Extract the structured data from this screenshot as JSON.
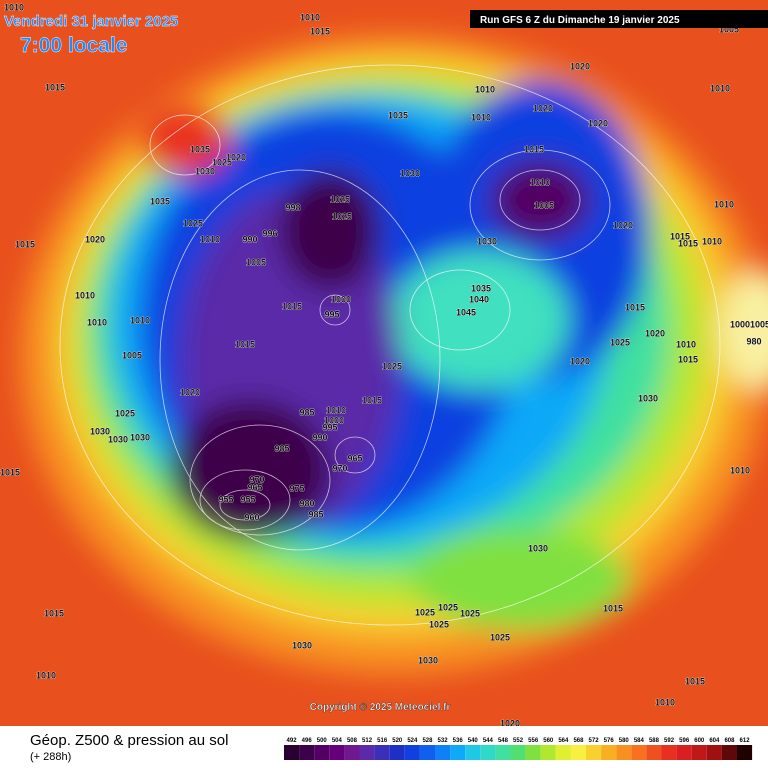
{
  "header": {
    "date": "Vendredi 31 janvier 2025",
    "time": "7:00 locale",
    "run": "Run GFS 6 Z du Dimanche 19 janvier 2025"
  },
  "map": {
    "isobar_labels": [
      1010,
      1010,
      1015,
      1015,
      1035,
      1025,
      1020,
      1030,
      1035,
      1025,
      1010,
      1020,
      1015,
      990,
      996,
      998,
      1025,
      1025,
      1005,
      1035,
      1030,
      1010,
      1010,
      1020,
      1020,
      1020,
      1005,
      1015,
      1010,
      1005,
      1030,
      1020,
      1015,
      1015,
      1010,
      1010,
      1010,
      1035,
      1040,
      1045,
      1000,
      995,
      1015,
      1015,
      1010,
      1010,
      1010,
      1005,
      1025,
      1020,
      1025,
      1015,
      1020,
      1010,
      1015,
      1030,
      1020,
      1015,
      985,
      1010,
      1000,
      995,
      990,
      985,
      965,
      970,
      970,
      965,
      975,
      980,
      985,
      955,
      955,
      960,
      1025,
      1030,
      1030,
      1030,
      1015,
      1010,
      1030,
      1015,
      1025,
      1025,
      1025,
      1025,
      1025,
      1015,
      1030,
      1030,
      1010,
      1015,
      1010,
      1020,
      1000,
      1005,
      980
    ],
    "copyright": "Copyright © 2025 Meteociel.fr"
  },
  "footer": {
    "title": "Géop. Z500 & pression au sol",
    "subtitle": "(+ 288h)"
  },
  "legend": {
    "levels": [
      492,
      496,
      500,
      504,
      508,
      512,
      516,
      520,
      524,
      528,
      532,
      536,
      540,
      544,
      548,
      552,
      556,
      560,
      564,
      568,
      572,
      576,
      580,
      584,
      588,
      592,
      596,
      600,
      604,
      608,
      612
    ],
    "colors": [
      "#2a0033",
      "#3d004a",
      "#520063",
      "#66007a",
      "#6f1890",
      "#5a2aa8",
      "#3a2fb8",
      "#1e2fc8",
      "#1040e0",
      "#1060f0",
      "#1080f8",
      "#10a8f8",
      "#20c8e8",
      "#30d8c8",
      "#40e0a0",
      "#50e070",
      "#80e040",
      "#b0e830",
      "#e0f030",
      "#f8f040",
      "#f8d030",
      "#f8b020",
      "#f89020",
      "#f87020",
      "#f05020",
      "#e83020",
      "#d82020",
      "#c01818",
      "#a01010",
      "#600808",
      "#200000"
    ]
  }
}
